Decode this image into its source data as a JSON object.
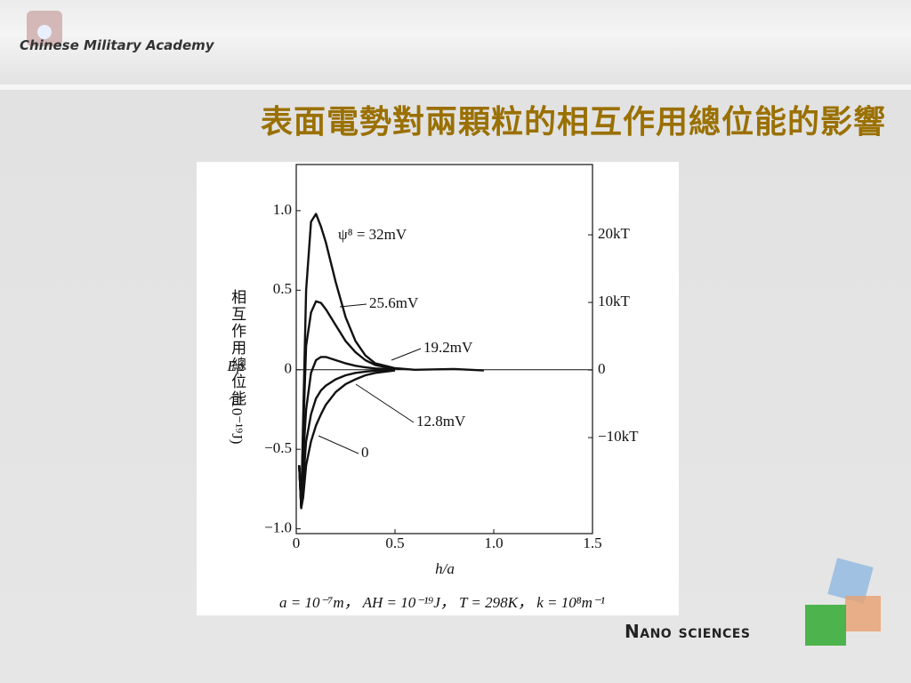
{
  "slide": {
    "logo_text": "Chinese Military Academy",
    "title": "表面電勢對兩顆粒的相互作用總位能的影響",
    "footer_logo": "Nano sciences"
  },
  "chart_data": {
    "type": "line",
    "y_label": "相互作用總位能",
    "y_label_symbol": "Ep",
    "y_label_unit": "(10⁻¹⁹J)",
    "x_label": "h/a",
    "caption": "a = 10⁻⁷m， AH = 10⁻¹⁹J， T = 298K， k = 10⁸m⁻¹",
    "x": [
      0.015,
      0.025,
      0.035,
      0.05,
      0.075,
      0.1,
      0.125,
      0.15,
      0.2,
      0.25,
      0.3,
      0.35,
      0.4,
      0.5,
      0.6,
      0.8,
      0.95
    ],
    "series": [
      {
        "name": "ψ⁸ = 32mV",
        "color": "#111111",
        "values": [
          -0.6,
          -0.85,
          -0.3,
          0.5,
          0.93,
          0.98,
          0.9,
          0.8,
          0.55,
          0.33,
          0.18,
          0.09,
          0.04,
          0.01,
          0,
          0.005,
          -0.005
        ]
      },
      {
        "name": "25.6mV",
        "color": "#111111",
        "values": [
          -0.6,
          -0.86,
          -0.4,
          0.15,
          0.36,
          0.43,
          0.42,
          0.38,
          0.28,
          0.18,
          0.11,
          0.06,
          0.03,
          0.005,
          null,
          null,
          null
        ]
      },
      {
        "name": "19.2mV",
        "color": "#111111",
        "values": [
          -0.6,
          -0.86,
          -0.55,
          -0.25,
          -0.02,
          0.06,
          0.08,
          0.08,
          0.06,
          0.04,
          0.025,
          0.015,
          0.008,
          0.002,
          null,
          null,
          null
        ]
      },
      {
        "name": "12.8mV",
        "color": "#111111",
        "values": [
          -0.6,
          -0.87,
          -0.7,
          -0.45,
          -0.28,
          -0.18,
          -0.13,
          -0.1,
          -0.06,
          -0.035,
          -0.02,
          -0.012,
          -0.006,
          0,
          null,
          null,
          null
        ]
      },
      {
        "name": "0",
        "color": "#111111",
        "values": [
          -0.6,
          -0.87,
          -0.8,
          -0.6,
          -0.45,
          -0.35,
          -0.28,
          -0.22,
          -0.14,
          -0.09,
          -0.06,
          -0.035,
          -0.02,
          -0.005,
          null,
          null,
          null
        ]
      }
    ],
    "xlim": [
      0,
      1.5
    ],
    "xticks": [
      0,
      0.5,
      {
        "value": 1,
        "label": "1.0"
      },
      1.5
    ],
    "ylim": [
      -1.03,
      1.29
    ],
    "yticks": [
      {
        "value": -1,
        "label": "−1.0"
      },
      {
        "value": -0.5,
        "label": "−0.5"
      },
      0,
      0.5,
      {
        "value": 1,
        "label": "1.0"
      }
    ],
    "y2lim": [
      -24.2,
      30.4
    ],
    "y2ticks": [
      {
        "value": -10,
        "label": "−10kT"
      },
      0,
      {
        "value": 10,
        "label": "10kT"
      },
      {
        "value": 20,
        "label": "20kT"
      }
    ]
  }
}
